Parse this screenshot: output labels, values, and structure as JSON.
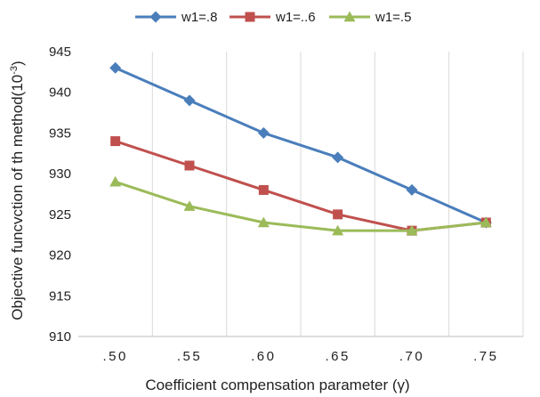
{
  "chart_data": {
    "type": "line",
    "title": "",
    "xlabel": "Coefficient compensation parameter (γ)",
    "ylabel": "Objective funcvction of th method(10",
    "ylabel_superscript": "-3",
    "ylabel_suffix": ")",
    "categories": [
      ".50",
      ".55",
      ".60",
      ".65",
      ".70",
      ".75"
    ],
    "ylim": [
      910,
      945
    ],
    "yticks": [
      "910",
      "915",
      "920",
      "925",
      "930",
      "935",
      "940",
      "945"
    ],
    "grid": "vertical",
    "legend_position": "top",
    "series": [
      {
        "name": "w1=.8",
        "values": [
          943,
          939,
          935,
          932,
          928,
          924
        ],
        "color": "#4a7ebb",
        "marker": "diamond"
      },
      {
        "name": "w1=..6",
        "values": [
          934,
          931,
          928,
          925,
          923,
          924
        ],
        "color": "#c0504d",
        "marker": "square"
      },
      {
        "name": "w1=.5",
        "values": [
          929,
          926,
          924,
          923,
          923,
          924
        ],
        "color": "#9bbb59",
        "marker": "triangle"
      }
    ]
  }
}
